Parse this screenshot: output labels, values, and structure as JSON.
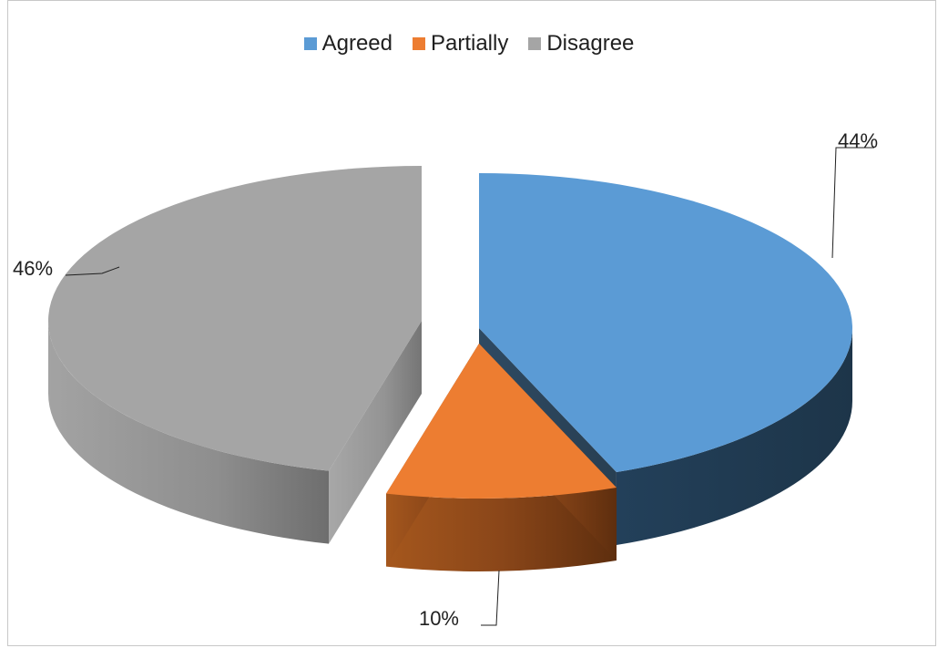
{
  "chart_data": {
    "type": "pie",
    "style": "3d-exploded",
    "legend_position": "top",
    "series": [
      {
        "categories": [
          "Agreed",
          "Partially",
          "Disagree"
        ],
        "values": [
          44,
          10,
          46
        ],
        "labels": [
          "44%",
          "10%",
          "46%"
        ],
        "colors": [
          "#5b9bd5",
          "#ed7d31",
          "#a5a5a5"
        ]
      }
    ]
  },
  "colors": {
    "Agreed": "#5b9bd5",
    "Partially": "#ed7d31",
    "Disagree": "#a5a5a5"
  }
}
